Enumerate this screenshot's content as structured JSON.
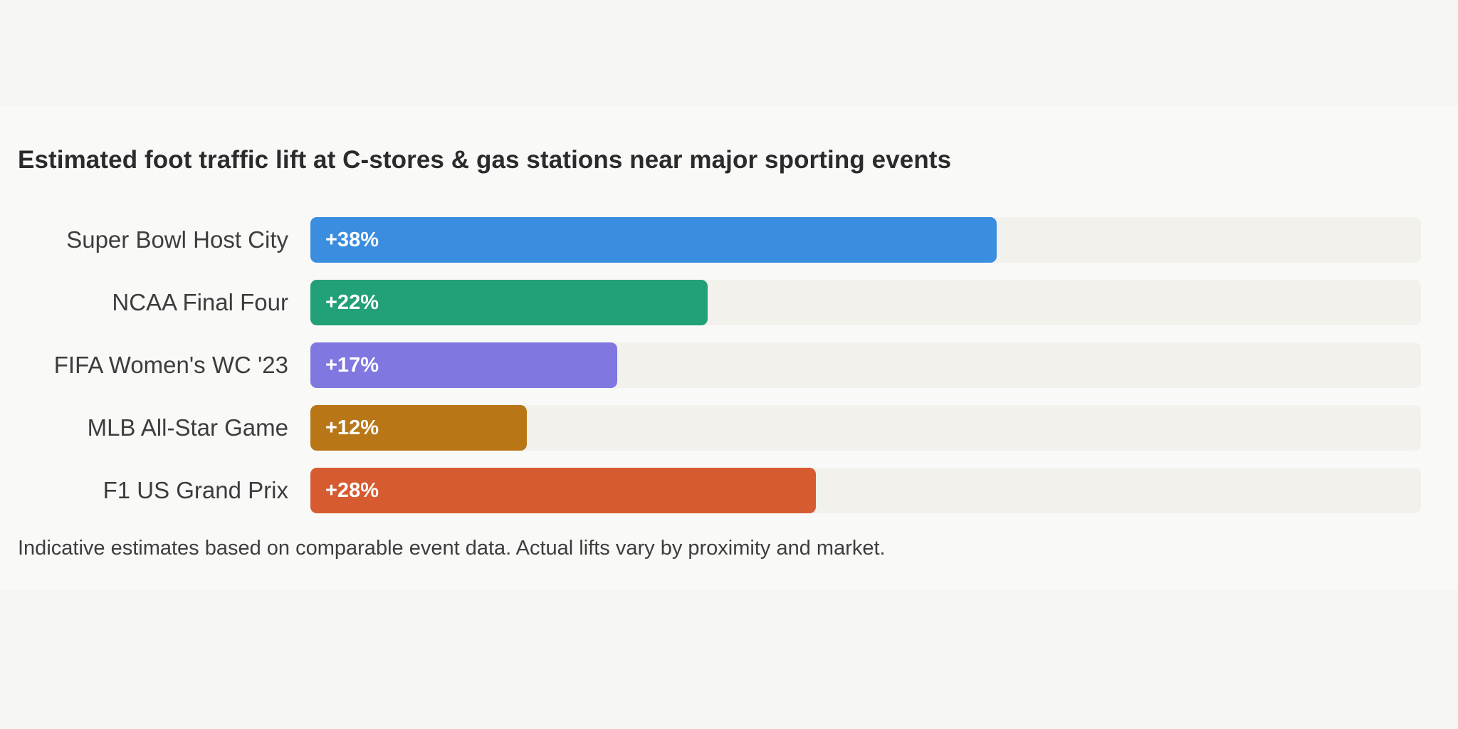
{
  "chart_data": {
    "type": "bar",
    "orientation": "horizontal",
    "title": "Estimated foot traffic lift at C-stores & gas stations near major sporting events",
    "categories": [
      "Super Bowl Host City",
      "NCAA Final Four",
      "FIFA Women's WC '23",
      "MLB All-Star Game",
      "F1 US Grand Prix"
    ],
    "values": [
      38,
      22,
      17,
      12,
      28
    ],
    "value_labels": [
      "+38%",
      "+22%",
      "+17%",
      "+12%",
      "+28%"
    ],
    "colors": [
      "#3a8ddf",
      "#22a077",
      "#8077e0",
      "#b97616",
      "#d65b30"
    ],
    "xlim": [
      0,
      61.5
    ],
    "unit": "%",
    "grid": false,
    "legend": "none",
    "footnote": "Indicative estimates based on comparable event data. Actual lifts vary by proximity and market."
  }
}
